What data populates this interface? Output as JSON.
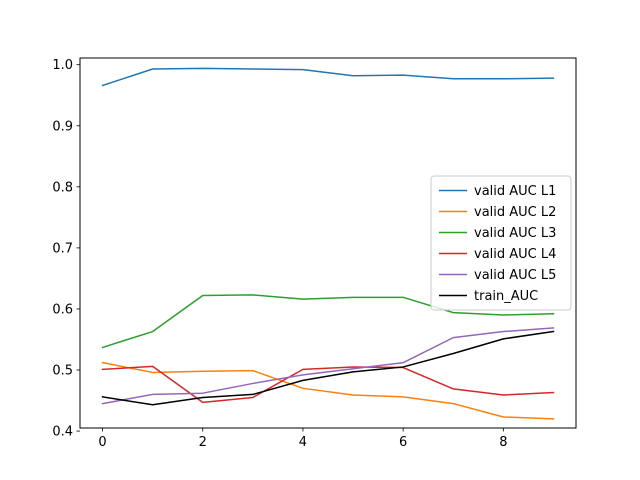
{
  "chart_data": {
    "type": "line",
    "title": "",
    "xlabel": "",
    "ylabel": "",
    "x": [
      0,
      1,
      2,
      3,
      4,
      5,
      6,
      7,
      8,
      9
    ],
    "xlim": [
      -0.45,
      9.45
    ],
    "ylim": [
      0.405,
      1.011
    ],
    "xticks": [
      0,
      2,
      4,
      6,
      8
    ],
    "yticks": [
      0.4,
      0.5,
      0.6,
      0.7,
      0.8,
      0.9,
      1.0
    ],
    "xtick_labels": [
      "0",
      "2",
      "4",
      "6",
      "8"
    ],
    "ytick_labels": [
      "0.4",
      "0.5",
      "0.6",
      "0.7",
      "0.8",
      "0.9",
      "1.0"
    ],
    "grid": false,
    "legend_position": "center-right",
    "series": [
      {
        "name": "valid AUC L1",
        "color": "#1f77b4",
        "values": [
          0.966,
          0.993,
          0.994,
          0.993,
          0.992,
          0.982,
          0.983,
          0.977,
          0.977,
          0.978
        ]
      },
      {
        "name": "valid AUC L2",
        "color": "#ff7f0e",
        "values": [
          0.512,
          0.496,
          0.498,
          0.499,
          0.47,
          0.459,
          0.456,
          0.445,
          0.423,
          0.42
        ]
      },
      {
        "name": "valid AUC L3",
        "color": "#2ca02c",
        "values": [
          0.537,
          0.563,
          0.622,
          0.623,
          0.616,
          0.619,
          0.619,
          0.594,
          0.59,
          0.592
        ]
      },
      {
        "name": "valid AUC L4",
        "color": "#d62728",
        "values": [
          0.501,
          0.506,
          0.447,
          0.455,
          0.501,
          0.505,
          0.504,
          0.469,
          0.459,
          0.463
        ]
      },
      {
        "name": "valid AUC L5",
        "color": "#9467bd",
        "values": [
          0.445,
          0.46,
          0.462,
          0.478,
          0.492,
          0.502,
          0.512,
          0.553,
          0.563,
          0.569
        ]
      },
      {
        "name": "train_AUC",
        "color": "#000000",
        "values": [
          0.456,
          0.443,
          0.455,
          0.46,
          0.483,
          0.497,
          0.505,
          0.527,
          0.551,
          0.563
        ]
      }
    ]
  }
}
